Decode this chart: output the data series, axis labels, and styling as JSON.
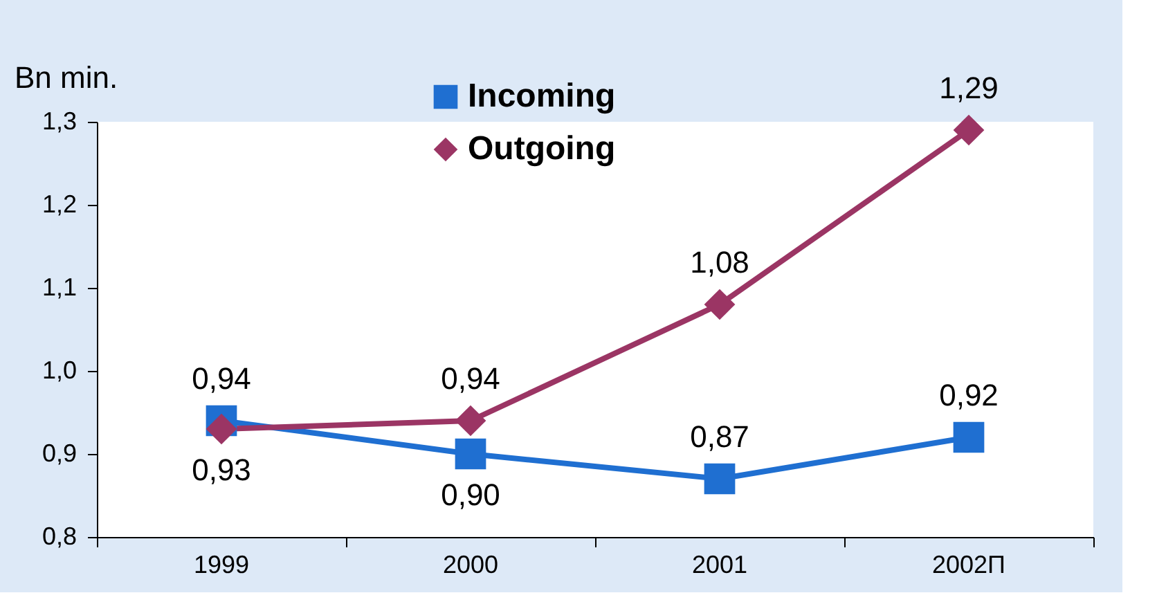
{
  "chart_data": {
    "type": "line",
    "ylabel": "Bn min.",
    "categories": [
      "1999",
      "2000",
      "2001",
      "2002П"
    ],
    "ylim": [
      0.8,
      1.3
    ],
    "yticks": [
      {
        "value": 0.8,
        "label": "0,8"
      },
      {
        "value": 0.9,
        "label": "0,9"
      },
      {
        "value": 1.0,
        "label": "1,0"
      },
      {
        "value": 1.1,
        "label": "1,1"
      },
      {
        "value": 1.2,
        "label": "1,2"
      },
      {
        "value": 1.3,
        "label": "1,3"
      }
    ],
    "series": [
      {
        "name": "Incoming",
        "color": "#1f6fd1",
        "marker": "square",
        "values": [
          0.94,
          0.9,
          0.87,
          0.92
        ],
        "value_labels": [
          "0,94",
          "0,90",
          "0,87",
          "0,92"
        ]
      },
      {
        "name": "Outgoing",
        "color": "#9b3564",
        "marker": "diamond",
        "values": [
          0.93,
          0.94,
          1.08,
          1.29
        ],
        "value_labels": [
          "0,93",
          "0,94",
          "1,08",
          "1,29"
        ]
      }
    ],
    "legend": "top left",
    "grid": false,
    "line_style": "solid"
  }
}
